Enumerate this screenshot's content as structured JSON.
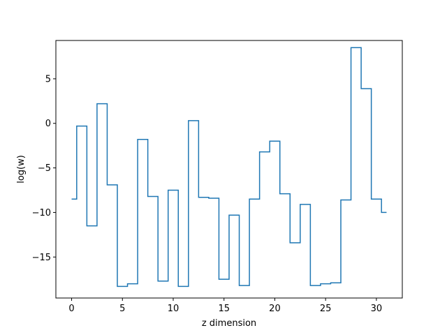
{
  "chart_data": {
    "type": "line",
    "drawstyle": "steps-mid",
    "title": "",
    "xlabel": "z dimension",
    "ylabel": "log(w)",
    "xlim": [
      -1.55,
      32.55
    ],
    "ylim": [
      -19.6,
      9.3
    ],
    "xticks": [
      0,
      5,
      10,
      15,
      20,
      25,
      30
    ],
    "xtick_labels": [
      "0",
      "5",
      "10",
      "15",
      "20",
      "25",
      "30"
    ],
    "yticks": [
      -15,
      -10,
      -5,
      0,
      5
    ],
    "ytick_labels": [
      "−15",
      "−10",
      "−5",
      "0",
      "5"
    ],
    "grid": false,
    "line_color": "#1f77b4",
    "series": [
      {
        "x": [
          0,
          1,
          2,
          3,
          4,
          5,
          6,
          7,
          8,
          9,
          10,
          11,
          12,
          13,
          14,
          15,
          16,
          17,
          18,
          19,
          20,
          21,
          22,
          23,
          24,
          25,
          26,
          27,
          28,
          29,
          30,
          31
        ],
        "values": [
          -8.5,
          -0.3,
          -11.5,
          2.2,
          -6.9,
          -18.3,
          -18.0,
          -1.8,
          -8.2,
          -17.7,
          -7.5,
          -18.3,
          0.3,
          -8.3,
          -8.4,
          -17.5,
          -10.3,
          -18.2,
          -8.5,
          -3.2,
          -2.0,
          -7.9,
          -13.4,
          -9.1,
          -18.2,
          -18.0,
          -17.9,
          -8.6,
          8.5,
          3.9,
          -8.5,
          -10.0
        ]
      }
    ]
  }
}
